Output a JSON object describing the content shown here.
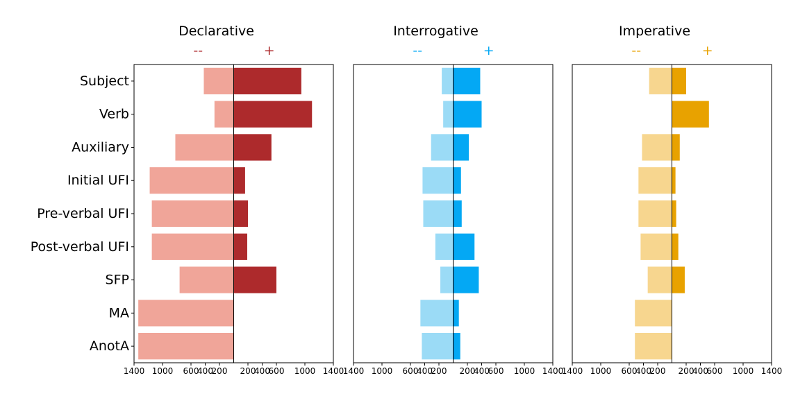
{
  "chart_data": {
    "type": "bar",
    "orientation": "diverging-horizontal",
    "categories": [
      "Subject",
      "Verb",
      "Auxiliary",
      "Initial UFI",
      "Pre-verbal UFI",
      "Post-verbal UFI",
      "SFP",
      "MA",
      "AnotA"
    ],
    "ticks": [
      {
        "value": -1400,
        "label": "1400"
      },
      {
        "value": -1000,
        "label": "1000"
      },
      {
        "value": -600,
        "label": "600"
      },
      {
        "value": -400,
        "label": "400"
      },
      {
        "value": -200,
        "label": "200"
      },
      {
        "value": 200,
        "label": "200"
      },
      {
        "value": 400,
        "label": "400"
      },
      {
        "value": 600,
        "label": "600"
      },
      {
        "value": 1000,
        "label": "1000"
      },
      {
        "value": 1400,
        "label": "1400"
      }
    ],
    "xlim": [
      -1400,
      1400
    ],
    "grid": false,
    "panels": [
      {
        "title": "Declarative",
        "neg_label": "--",
        "pos_label": "+",
        "neg_color": "#f0a599",
        "pos_color": "#ad2a2c",
        "negative": [
          420,
          270,
          820,
          1180,
          1150,
          1150,
          760,
          1340,
          1340
        ],
        "positive": [
          950,
          1100,
          530,
          160,
          200,
          190,
          600,
          0,
          0
        ]
      },
      {
        "title": "Interrogative",
        "neg_label": "--",
        "pos_label": "+",
        "neg_color": "#9bdbf6",
        "pos_color": "#04a8f4",
        "negative": [
          160,
          140,
          310,
          430,
          420,
          250,
          180,
          460,
          440
        ],
        "positive": [
          380,
          400,
          220,
          110,
          120,
          300,
          360,
          80,
          100
        ]
      },
      {
        "title": "Imperative",
        "neg_label": "--",
        "pos_label": "+",
        "neg_color": "#f7d68f",
        "pos_color": "#e8a200",
        "negative": [
          320,
          0,
          420,
          470,
          470,
          440,
          340,
          520,
          520
        ],
        "positive": [
          200,
          520,
          110,
          50,
          60,
          90,
          180,
          0,
          0
        ]
      }
    ]
  }
}
